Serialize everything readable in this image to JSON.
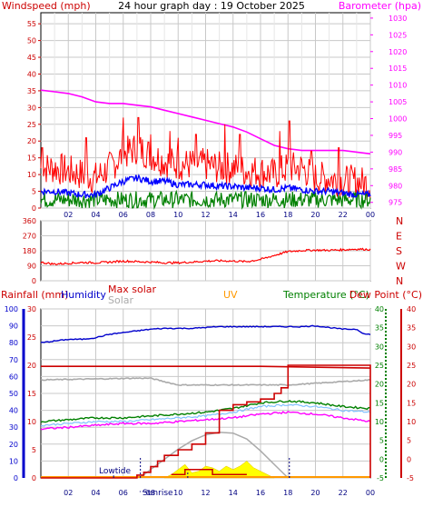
{
  "title": "24 hour graph day : 19 October 2025",
  "colors": {
    "wind": "#ff0000",
    "wind_dark": "#cc0000",
    "avg_wind": "#0000ff",
    "baro": "#ff00ff",
    "dir": "#ff0000",
    "rain": "#cc0000",
    "humidity": "#0000cc",
    "maxsolar": "#cc0000",
    "solar": "#aaaaaa",
    "uv": "#ff9900",
    "temperature": "#008000",
    "dewpoint": "#cc0000",
    "grid": "#c8c8c8",
    "frame": "#000000",
    "tick_x": "#000080",
    "annot": "#000080",
    "panel": "#ffffff"
  },
  "chart_data": [
    {
      "type": "line",
      "title": "24 hour graph day : 19 October 2025",
      "left_axis": {
        "label": "Windspeed (mph)",
        "ticks": [
          "0",
          "5",
          "10",
          "15",
          "20",
          "25",
          "30",
          "35",
          "40",
          "45",
          "50",
          "55"
        ],
        "ylim": [
          0,
          58.3
        ]
      },
      "right_axis": {
        "label": "Barometer (hpa)",
        "ticks": [
          "975",
          "980",
          "985",
          "990",
          "995",
          "1000",
          "1005",
          "1010",
          "1015",
          "1020",
          "1025",
          "1030"
        ],
        "ylim": [
          973.3,
          1031.6
        ]
      },
      "x_ticks": [
        "02",
        "04",
        "06",
        "08",
        "10",
        "12",
        "14",
        "16",
        "18",
        "20",
        "22",
        "00"
      ],
      "x_tick_hours": [
        2,
        4,
        6,
        8,
        10,
        12,
        14,
        16,
        18,
        20,
        22,
        24
      ],
      "xlim": [
        0,
        24
      ],
      "grid": true,
      "series": [
        {
          "id": "baro",
          "axis": "right",
          "x": [
            0,
            1,
            2,
            3,
            4,
            5,
            6,
            7,
            8,
            9,
            10,
            11,
            12,
            13,
            14,
            15,
            16,
            17,
            18,
            19,
            20,
            21,
            22,
            23,
            24
          ],
          "values": [
            1008.5,
            1008,
            1007.5,
            1006.5,
            1005,
            1004.5,
            1004.5,
            1004,
            1003.5,
            1002.5,
            1001.5,
            1000.5,
            999.5,
            998.5,
            997.5,
            996,
            994,
            992,
            991,
            990.5,
            990.5,
            990.5,
            990.5,
            990,
            989.5
          ]
        },
        {
          "id": "gust",
          "axis": "left",
          "x": [
            0,
            1,
            2,
            3,
            4,
            5,
            6,
            7,
            8,
            9,
            10,
            11,
            12,
            13,
            14,
            15,
            16,
            17,
            18,
            19,
            20,
            21,
            22,
            23,
            24
          ],
          "values": [
            12,
            12,
            11,
            10,
            9,
            12,
            16,
            18,
            16,
            14,
            13,
            13,
            13,
            12,
            12,
            11,
            11,
            10,
            12,
            12,
            9,
            9,
            8,
            8,
            7
          ],
          "amp": 5,
          "peaks": [
            [
              0.1,
              18
            ],
            [
              3.3,
              21
            ],
            [
              6,
              27
            ],
            [
              7.1,
              27
            ],
            [
              8,
              22
            ],
            [
              9.4,
              23
            ],
            [
              10,
              21
            ],
            [
              11.3,
              22
            ],
            [
              13.4,
              25
            ],
            [
              14.5,
              22
            ],
            [
              17.4,
              23
            ],
            [
              18.1,
              26
            ],
            [
              19.7,
              17
            ],
            [
              21.7,
              18
            ]
          ]
        },
        {
          "id": "avg",
          "axis": "left",
          "x": [
            0,
            1,
            2,
            3,
            4,
            5,
            6,
            7,
            8,
            9,
            10,
            11,
            12,
            13,
            14,
            15,
            16,
            17,
            18,
            19,
            20,
            21,
            22,
            23,
            24
          ],
          "values": [
            5,
            5,
            4.5,
            4,
            4,
            6,
            8,
            9,
            8,
            8,
            7,
            7,
            7,
            6.5,
            6.5,
            6,
            6,
            5.5,
            6,
            5.5,
            5,
            5,
            4.5,
            4,
            4
          ],
          "amp": 1
        },
        {
          "id": "low",
          "axis": "left",
          "x": [
            0,
            24
          ],
          "values": [
            2.5,
            2.5
          ],
          "amp": 2.5
        }
      ]
    },
    {
      "type": "line",
      "title": "",
      "left_axis": {
        "ticks": [
          "0",
          "90",
          "180",
          "270",
          "360"
        ],
        "ylim": [
          0,
          360
        ]
      },
      "right_axis": {
        "ticks": [
          "N",
          "W",
          "S",
          "E",
          "N"
        ]
      },
      "xlim": [
        0,
        24
      ],
      "grid": true,
      "series": [
        {
          "id": "dir",
          "x": [
            0,
            1,
            2,
            3,
            4,
            5,
            6,
            7,
            8,
            9,
            10,
            11,
            12,
            13,
            14,
            15,
            16,
            17,
            18,
            19,
            20,
            21,
            22,
            23,
            24
          ],
          "values": [
            110,
            100,
            105,
            110,
            108,
            112,
            118,
            115,
            112,
            108,
            108,
            112,
            118,
            120,
            118,
            115,
            128,
            152,
            175,
            182,
            184,
            183,
            186,
            190,
            188
          ],
          "amp": 6
        }
      ]
    },
    {
      "type": "line",
      "title": "",
      "axis_labels": {
        "rain": "Rainfall (mm)",
        "humidity": "Humidity",
        "maxsolar": "Max solar",
        "solar": "Solar",
        "uv": "UV",
        "temperature": "Temperature (°C)",
        "dewpoint": "Dew Point (°C)"
      },
      "humidity_axis": {
        "ticks": [
          "0",
          "10",
          "20",
          "30",
          "40",
          "50",
          "60",
          "70",
          "80",
          "90",
          "100"
        ],
        "ylim": [
          0,
          100
        ]
      },
      "rain_axis": {
        "ticks": [
          "0",
          "5",
          "10",
          "15",
          "20",
          "25",
          "30"
        ],
        "ylim": [
          0,
          30
        ]
      },
      "temp_axis_green": {
        "ticks": [
          "-5",
          "0",
          "5",
          "10",
          "15",
          "20",
          "25",
          "30",
          "35",
          "40"
        ],
        "ylim": [
          -5,
          40
        ]
      },
      "temp_axis_red": {
        "ticks": [
          "-5",
          "0",
          "5",
          "10",
          "15",
          "20",
          "25",
          "30",
          "35",
          "40"
        ],
        "ylim": [
          -5,
          40
        ]
      },
      "x_ticks": [
        "02",
        "04",
        "06",
        "08",
        "10",
        "12",
        "14",
        "16",
        "18",
        "20",
        "22",
        "00"
      ],
      "x_tick_hours": [
        2,
        4,
        6,
        8,
        10,
        12,
        14,
        16,
        18,
        20,
        22,
        24
      ],
      "xlim": [
        0,
        24
      ],
      "grid": true,
      "annotations": {
        "lowtide": "Lowtide",
        "sunrise": "Sunrise",
        "sunrise_hour": 7.25,
        "sunset_hour": 18.1,
        "lowtide_hour": 5.3,
        "dots_hours": [
          10.7,
          18.1
        ]
      },
      "series": [
        {
          "id": "humidity",
          "axis": "humidity",
          "x": [
            0,
            1,
            2,
            3,
            4,
            5,
            6,
            7,
            8,
            9,
            10,
            11,
            12,
            13,
            14,
            15,
            16,
            17,
            18,
            19,
            20,
            21,
            22,
            23,
            23.6,
            24
          ],
          "values": [
            80,
            81,
            82,
            82,
            83,
            85,
            86,
            87,
            88,
            88.5,
            88.5,
            88.5,
            89,
            89.5,
            89.5,
            89.5,
            89.5,
            89.5,
            89.5,
            89.5,
            90,
            89,
            88,
            88,
            85,
            85
          ]
        },
        {
          "id": "maxsolar_line",
          "axis": "humidity",
          "x": [
            0,
            8,
            16,
            24
          ],
          "values": [
            66,
            66,
            66,
            65
          ]
        },
        {
          "id": "solar_line",
          "axis": "humidity",
          "x": [
            0,
            7,
            8,
            9,
            10,
            12,
            14,
            16,
            18,
            20,
            22,
            24
          ],
          "values": [
            58,
            59,
            59,
            57,
            55,
            55,
            55,
            55,
            55,
            56,
            57,
            58
          ]
        },
        {
          "id": "temperature",
          "axis": "temp",
          "x": [
            0,
            2,
            4,
            6,
            8,
            10,
            12,
            14,
            16,
            18,
            20,
            22,
            24
          ],
          "values": [
            10,
            10.5,
            11,
            11,
            11.5,
            12,
            12.5,
            13.5,
            15,
            15.5,
            15,
            14,
            13.5
          ]
        },
        {
          "id": "dewpoint",
          "axis": "temp",
          "x": [
            0,
            2,
            4,
            6,
            8,
            10,
            12,
            14,
            16,
            18,
            20,
            22,
            24
          ],
          "values": [
            8,
            8.5,
            9,
            9.5,
            9.5,
            10,
            10.5,
            11,
            12,
            12.5,
            12,
            11,
            10
          ]
        },
        {
          "id": "feelslike",
          "axis": "temp",
          "x": [
            0,
            2,
            4,
            6,
            8,
            10,
            12,
            14,
            16,
            18,
            20,
            22,
            24
          ],
          "values": [
            9,
            9.5,
            10,
            10,
            10.5,
            11,
            11.5,
            12.5,
            14,
            14.5,
            14,
            13,
            12.5
          ]
        },
        {
          "id": "rain",
          "axis": "rain",
          "x": [
            0,
            5,
            6,
            7,
            7.5,
            8,
            8.5,
            9,
            10,
            11,
            12,
            13,
            14,
            15,
            16,
            17,
            17.5,
            18,
            23.9,
            24
          ],
          "values": [
            0,
            0,
            0,
            0.5,
            1,
            2,
            3,
            4,
            5,
            6,
            8,
            12,
            13,
            13.5,
            14,
            15,
            16,
            20,
            20,
            0
          ]
        },
        {
          "id": "maxsolar_curve",
          "axis": "humidity",
          "x": [
            7.2,
            8,
            9,
            10,
            11,
            12,
            13,
            14,
            15,
            16,
            17,
            18
          ],
          "values": [
            0,
            5,
            11,
            17,
            22,
            25.5,
            27,
            26.5,
            23,
            16,
            8,
            0
          ]
        },
        {
          "id": "uv_solar",
          "axis": "humidity",
          "x": [
            9,
            9.5,
            10,
            10.5,
            11,
            11.5,
            12,
            12.5,
            13,
            13.5,
            14,
            14.5,
            15,
            15.5,
            16,
            16.5,
            17
          ],
          "values": [
            0,
            2,
            5,
            8,
            3,
            4,
            7,
            6,
            4,
            7,
            5,
            7,
            10,
            6,
            4,
            2,
            0
          ]
        }
      ]
    }
  ]
}
